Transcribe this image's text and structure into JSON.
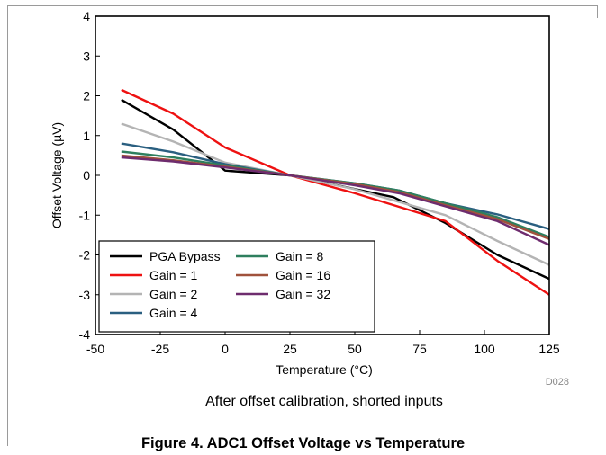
{
  "chart_data": {
    "type": "line",
    "xlabel": "Temperature (°C)",
    "ylabel": "Offset Voltage (µV)",
    "subtitle": "After offset calibration, shorted inputs",
    "corner_tag": "D028",
    "xlim": [
      -50,
      125
    ],
    "ylim": [
      -4,
      4
    ],
    "x_ticks": [
      -50,
      -25,
      0,
      25,
      50,
      75,
      100,
      125
    ],
    "y_ticks": [
      4,
      3,
      2,
      1,
      0,
      -1,
      -2,
      -3,
      -4
    ],
    "grid": false,
    "legend_position": "bottom-left",
    "series": [
      {
        "name": "PGA Bypass",
        "color": "#000000",
        "points": [
          [
            -40,
            1.9
          ],
          [
            -20,
            1.15
          ],
          [
            0,
            0.12
          ],
          [
            25,
            0.0
          ],
          [
            65,
            -0.55
          ],
          [
            85,
            -1.2
          ],
          [
            105,
            -2.0
          ],
          [
            125,
            -2.6
          ]
        ]
      },
      {
        "name": "Gain = 1",
        "color": "#ee1111",
        "points": [
          [
            -40,
            2.15
          ],
          [
            -20,
            1.55
          ],
          [
            0,
            0.7
          ],
          [
            25,
            0.0
          ],
          [
            50,
            -0.45
          ],
          [
            85,
            -1.15
          ],
          [
            105,
            -2.15
          ],
          [
            125,
            -3.0
          ]
        ]
      },
      {
        "name": "Gain = 2",
        "color": "#b4b4b4",
        "points": [
          [
            -40,
            1.3
          ],
          [
            -20,
            0.85
          ],
          [
            0,
            0.32
          ],
          [
            25,
            0.0
          ],
          [
            50,
            -0.35
          ],
          [
            85,
            -1.0
          ],
          [
            105,
            -1.65
          ],
          [
            125,
            -2.25
          ]
        ]
      },
      {
        "name": "Gain = 4",
        "color": "#2a5f80",
        "points": [
          [
            -40,
            0.8
          ],
          [
            -20,
            0.58
          ],
          [
            0,
            0.28
          ],
          [
            25,
            0.0
          ],
          [
            50,
            -0.2
          ],
          [
            67,
            -0.38
          ],
          [
            85,
            -0.7
          ],
          [
            105,
            -0.98
          ],
          [
            125,
            -1.35
          ]
        ]
      },
      {
        "name": "Gain = 8",
        "color": "#2e7f5e",
        "points": [
          [
            -40,
            0.6
          ],
          [
            -20,
            0.45
          ],
          [
            0,
            0.25
          ],
          [
            25,
            0.0
          ],
          [
            50,
            -0.2
          ],
          [
            67,
            -0.38
          ],
          [
            85,
            -0.7
          ],
          [
            105,
            -1.05
          ],
          [
            125,
            -1.55
          ]
        ]
      },
      {
        "name": "Gain = 16",
        "color": "#a0523c",
        "points": [
          [
            -40,
            0.5
          ],
          [
            -20,
            0.38
          ],
          [
            0,
            0.22
          ],
          [
            25,
            0.0
          ],
          [
            50,
            -0.22
          ],
          [
            67,
            -0.42
          ],
          [
            85,
            -0.75
          ],
          [
            105,
            -1.1
          ],
          [
            125,
            -1.6
          ]
        ]
      },
      {
        "name": "Gain = 32",
        "color": "#6e2c6e",
        "points": [
          [
            -40,
            0.45
          ],
          [
            -20,
            0.35
          ],
          [
            0,
            0.2
          ],
          [
            25,
            0.0
          ],
          [
            50,
            -0.25
          ],
          [
            67,
            -0.45
          ],
          [
            85,
            -0.78
          ],
          [
            105,
            -1.15
          ],
          [
            125,
            -1.75
          ]
        ]
      }
    ]
  },
  "figure_caption": "Figure 4. ADC1 Offset Voltage vs Temperature"
}
